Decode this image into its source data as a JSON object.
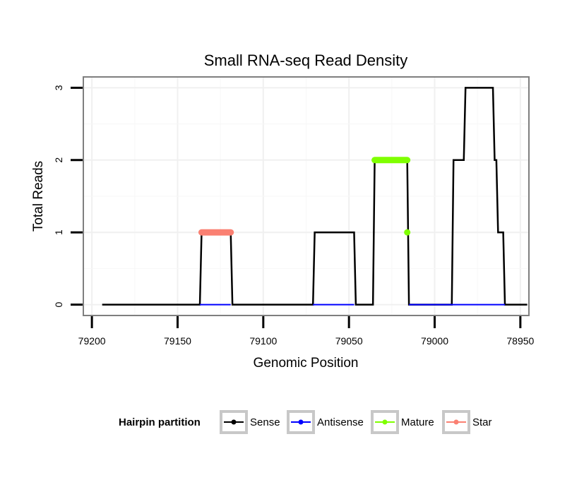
{
  "chart_data": {
    "type": "line",
    "title": "Small RNA-seq Read Density",
    "xlabel": "Genomic Position",
    "ylabel": "Total Reads",
    "xlim": [
      79205,
      78945
    ],
    "x_reversed": true,
    "ylim": [
      -0.15,
      3.15
    ],
    "x_ticks": [
      79200,
      79150,
      79100,
      79050,
      79000,
      78950
    ],
    "x_tick_labels": [
      "79200",
      "79150",
      "79100",
      "79050",
      "79000",
      "78950"
    ],
    "y_ticks": [
      0,
      1,
      2,
      3
    ],
    "y_tick_labels": [
      "0",
      "1",
      "2",
      "3"
    ],
    "grid": true,
    "legend": {
      "title": "Hairpin partition",
      "placement": "bottom",
      "entries": [
        "Sense",
        "Antisense",
        "Mature",
        "Star"
      ]
    },
    "colors": {
      "Sense": "#000000",
      "Antisense": "#0000ff",
      "Mature": "#7fff00",
      "Star": "#fa8072"
    },
    "series": [
      {
        "name": "Sense",
        "style": "line",
        "x": [
          79194,
          79137,
          79136,
          79119,
          79118,
          79071,
          79070,
          79047,
          79046,
          79036,
          79035,
          79016,
          79015,
          78990,
          78989,
          78983,
          78982,
          78966,
          78965,
          78964,
          78963,
          78960,
          78959,
          78946
        ],
        "y": [
          0,
          0,
          1,
          1,
          0,
          0,
          1,
          1,
          0,
          0,
          2,
          2,
          0,
          0,
          2,
          2,
          3,
          3,
          2,
          2,
          1,
          1,
          0,
          0
        ]
      },
      {
        "name": "Antisense",
        "style": "line",
        "x": [
          79137,
          79119,
          79071,
          79047,
          79015,
          78959
        ],
        "y": [
          0,
          0,
          0,
          0,
          0,
          0
        ]
      },
      {
        "name": "Mature",
        "style": "segment",
        "x": [
          79035,
          79016
        ],
        "y": [
          2,
          2
        ],
        "extra_point": {
          "x": 79016,
          "y": 1
        }
      },
      {
        "name": "Star",
        "style": "segment",
        "x": [
          79136,
          79119
        ],
        "y": [
          1,
          1
        ]
      }
    ]
  }
}
